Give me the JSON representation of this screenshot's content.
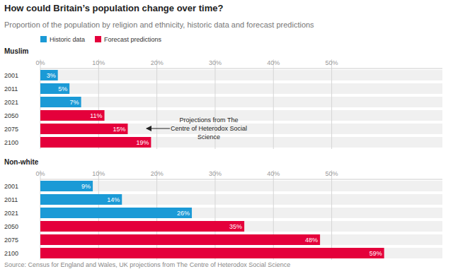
{
  "title": "How could Britain’s population change over time?",
  "subtitle": "Proportion of the population by religion and ethnicity, historic data and forecast predictions",
  "legend": [
    {
      "name": "Historic data",
      "color": "#1b9ad6"
    },
    {
      "name": "Forecast predictions",
      "color": "#e4003b"
    }
  ],
  "source": "Source: Census for England and Wales, UK projections from The Centre of Heterodox Social Science",
  "chart_data": [
    {
      "type": "bar",
      "orientation": "horizontal",
      "title": "Muslim",
      "categories": [
        "2001",
        "2011",
        "2021",
        "2050",
        "2075",
        "2100"
      ],
      "values": [
        3,
        5,
        7,
        11,
        15,
        19
      ],
      "value_labels": [
        "3%",
        "5%",
        "7%",
        "11%",
        "15%",
        "19%"
      ],
      "data_labels": true,
      "colors": [
        "#1b9ad6",
        "#1b9ad6",
        "#1b9ad6",
        "#e4003b",
        "#e4003b",
        "#e4003b"
      ],
      "xlim": [
        0,
        69
      ],
      "xticks": [
        {
          "value": 0,
          "label": "0%"
        },
        {
          "value": 10,
          "label": "10%"
        },
        {
          "value": 20,
          "label": "20%"
        },
        {
          "value": 30,
          "label": "30%"
        },
        {
          "value": 40,
          "label": "40%"
        },
        {
          "value": 50,
          "label": "50%"
        }
      ],
      "grid": true,
      "annotation": [
        "Projections from The",
        "Centre of Heterodox Social",
        "Science"
      ]
    },
    {
      "type": "bar",
      "orientation": "horizontal",
      "title": "Non-white",
      "categories": [
        "2001",
        "2011",
        "2021",
        "2050",
        "2075",
        "2100"
      ],
      "values": [
        9,
        14,
        26,
        35,
        48,
        59
      ],
      "value_labels": [
        "9%",
        "14%",
        "26%",
        "35%",
        "48%",
        "59%"
      ],
      "data_labels": true,
      "colors": [
        "#1b9ad6",
        "#1b9ad6",
        "#1b9ad6",
        "#e4003b",
        "#e4003b",
        "#e4003b"
      ],
      "xlim": [
        0,
        69
      ],
      "xticks": [
        {
          "value": 0,
          "label": "0%"
        },
        {
          "value": 10,
          "label": "10%"
        },
        {
          "value": 20,
          "label": "20%"
        },
        {
          "value": 30,
          "label": "30%"
        },
        {
          "value": 40,
          "label": "40%"
        },
        {
          "value": 50,
          "label": "50%"
        }
      ],
      "grid": true
    }
  ]
}
